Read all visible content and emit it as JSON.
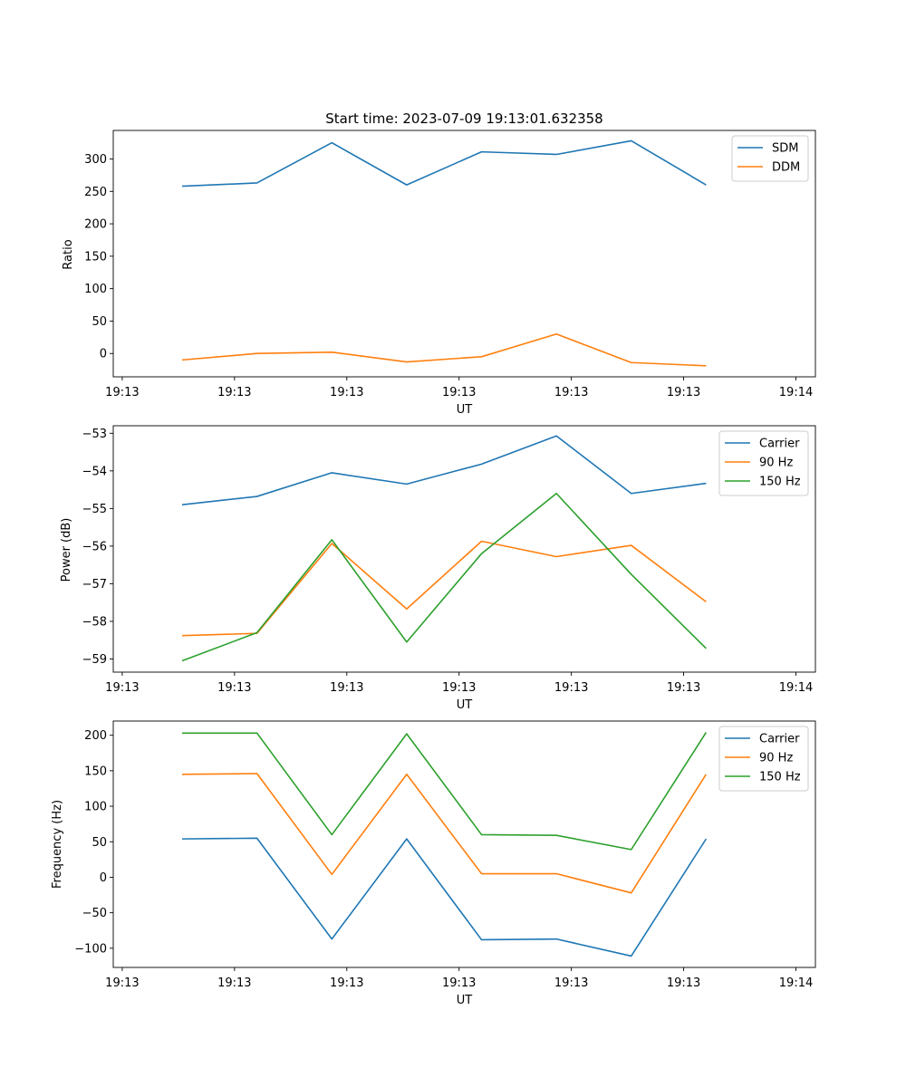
{
  "title": "Start time: 2023-07-09 19:13:01.632358",
  "chart_data": [
    {
      "type": "line",
      "xlabel": "UT",
      "ylabel": "Ratio",
      "x": [
        0.5,
        1,
        1.5,
        2,
        2.5,
        3,
        3.5,
        4
      ],
      "xlim": [
        0.04,
        4.73
      ],
      "ylim": [
        -36,
        344
      ],
      "xticks": [
        0.1,
        0.85,
        1.6,
        2.35,
        3.1,
        3.85,
        4.6
      ],
      "xtick_labels": [
        "19:13",
        "19:13",
        "19:13",
        "19:13",
        "19:13",
        "19:13",
        "19:14"
      ],
      "yticks": [
        0,
        50,
        100,
        150,
        200,
        250,
        300
      ],
      "legend": "top-right",
      "series": [
        {
          "name": "SDM",
          "color": "#1f77b4",
          "values": [
            258,
            263,
            325,
            260,
            311,
            307,
            328,
            260
          ]
        },
        {
          "name": "DDM",
          "color": "#ff7f0e",
          "values": [
            -10,
            0,
            2,
            -13,
            -5,
            30,
            -14,
            -19
          ]
        }
      ]
    },
    {
      "type": "line",
      "xlabel": "UT",
      "ylabel": "Power (dB)",
      "x": [
        0.5,
        1,
        1.5,
        2,
        2.5,
        3,
        3.5,
        4
      ],
      "xlim": [
        0.04,
        4.73
      ],
      "ylim": [
        -59.35,
        -52.8
      ],
      "xticks": [
        0.1,
        0.85,
        1.6,
        2.35,
        3.1,
        3.85,
        4.6
      ],
      "xtick_labels": [
        "19:13",
        "19:13",
        "19:13",
        "19:13",
        "19:13",
        "19:13",
        "19:14"
      ],
      "yticks": [
        -59,
        -58,
        -57,
        -56,
        -55,
        -54,
        -53
      ],
      "legend": "top-right",
      "series": [
        {
          "name": "Carrier",
          "color": "#1f77b4",
          "values": [
            -54.9,
            -54.68,
            -54.05,
            -54.35,
            -53.82,
            -53.07,
            -54.6,
            -54.33
          ]
        },
        {
          "name": "90 Hz",
          "color": "#ff7f0e",
          "values": [
            -58.38,
            -58.32,
            -55.93,
            -57.67,
            -55.87,
            -56.28,
            -55.98,
            -57.48
          ]
        },
        {
          "name": "150 Hz",
          "color": "#2ca02c",
          "values": [
            -59.05,
            -58.3,
            -55.83,
            -58.55,
            -56.2,
            -54.6,
            -56.75,
            -58.72
          ]
        }
      ]
    },
    {
      "type": "line",
      "xlabel": "UT",
      "ylabel": "Frequency (Hz)",
      "x": [
        0.5,
        1,
        1.5,
        2,
        2.5,
        3,
        3.5,
        4
      ],
      "xlim": [
        0.04,
        4.73
      ],
      "ylim": [
        -127,
        220
      ],
      "xticks": [
        0.1,
        0.85,
        1.6,
        2.35,
        3.1,
        3.85,
        4.6
      ],
      "xtick_labels": [
        "19:13",
        "19:13",
        "19:13",
        "19:13",
        "19:13",
        "19:13",
        "19:14"
      ],
      "yticks": [
        -100,
        -50,
        0,
        50,
        100,
        150,
        200
      ],
      "legend": "top-right",
      "series": [
        {
          "name": "Carrier",
          "color": "#1f77b4",
          "values": [
            54,
            55,
            -87,
            54,
            -88,
            -87,
            -111,
            54
          ]
        },
        {
          "name": "90 Hz",
          "color": "#ff7f0e",
          "values": [
            145,
            146,
            4,
            145,
            5,
            5,
            -22,
            145
          ]
        },
        {
          "name": "150 Hz",
          "color": "#2ca02c",
          "values": [
            203,
            203,
            60,
            202,
            60,
            59,
            39,
            204
          ]
        }
      ]
    }
  ]
}
